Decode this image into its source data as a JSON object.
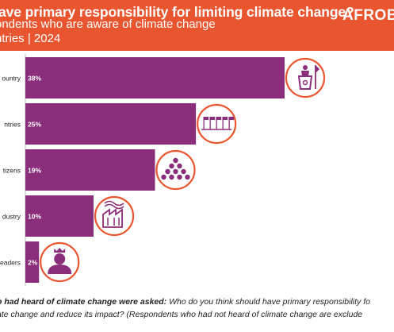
{
  "header": {
    "title": "ave primary responsibility for limiting climate change?",
    "subtitle_line1": "ondents who are aware of climate change",
    "subtitle_line2": "ntries | 2024",
    "logo": "AFROB",
    "background_color": "#e9552f"
  },
  "chart_data": {
    "type": "bar",
    "orientation": "horizontal",
    "categories": [
      "ountry",
      "ntries",
      "tizens",
      "dustry",
      "eaders"
    ],
    "values": [
      38,
      25,
      19,
      10,
      2
    ],
    "value_labels": [
      "38%",
      "25%",
      "19%",
      "10%",
      "2%"
    ],
    "icons": [
      "government-podium-icon",
      "flags-row-icon",
      "crowd-icon",
      "factory-icon",
      "leader-crown-icon"
    ],
    "bar_color": "#8a2d7a",
    "icon_ring_color": "#e9552f",
    "xlim": [
      0,
      44
    ],
    "grid": false,
    "title": "",
    "xlabel": "",
    "ylabel": ""
  },
  "footer": {
    "bold_text": "o had heard of climate change were asked:",
    "line1_rest": "Who do you think should have primary responsibility fo",
    "line2": "ate change and reduce its impact? (Respondents who had not heard of climate change are exclude"
  }
}
